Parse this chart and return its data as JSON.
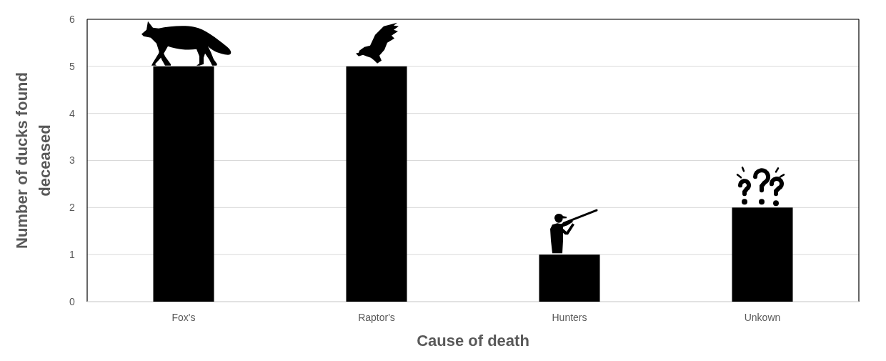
{
  "chart_data": {
    "type": "bar",
    "xlabel": "Cause of death",
    "ylabel": "Number of ducks found deceased",
    "categories": [
      "Fox's",
      "Raptor's",
      "Hunters",
      "Unkown"
    ],
    "values": [
      5,
      5,
      1,
      2
    ],
    "color": "#000000",
    "ylim": [
      0,
      6
    ],
    "yticks": [
      0,
      1,
      2,
      3,
      4,
      5,
      6
    ],
    "grid": "y"
  }
}
